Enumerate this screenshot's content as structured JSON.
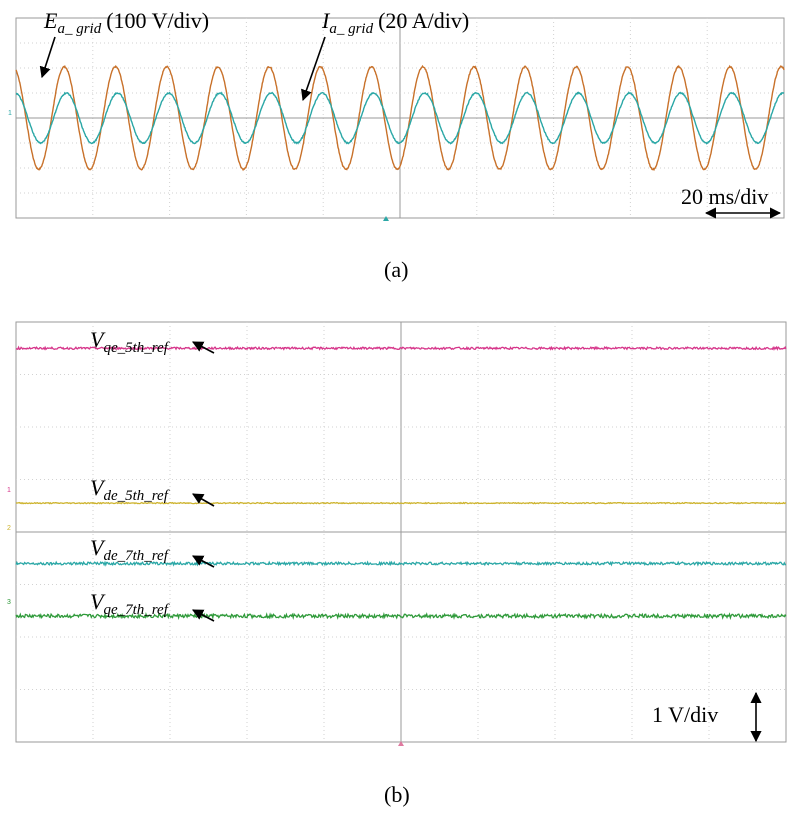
{
  "chart_data": [
    {
      "panel": "a",
      "type": "line",
      "caption": "(a)",
      "grid": true,
      "grid_divisions": {
        "x": 10,
        "y": 8
      },
      "scale": {
        "time": "20 ms/div"
      },
      "annotations": [
        {
          "symbol": "E",
          "subscript": "a_ grid",
          "text": "(100 V/div)"
        },
        {
          "symbol": "I",
          "subscript": "a_ grid",
          "text": "(20 A/div)"
        }
      ],
      "series": [
        {
          "symbol": "E",
          "subscript": "a_ grid",
          "color": "#c8712a",
          "waveform": "sine",
          "cycles": 15,
          "amplitude_div": 2.05,
          "offset_div": 0
        },
        {
          "symbol": "I",
          "subscript": "a_ grid",
          "color": "#2aa7a6",
          "waveform": "sine",
          "cycles": 15,
          "amplitude_div": 1.0,
          "offset_div": 0,
          "phase_deg": 14
        }
      ]
    },
    {
      "panel": "b",
      "type": "line",
      "caption": "(b)",
      "grid": true,
      "grid_divisions": {
        "x": 10,
        "y": 8
      },
      "scale": {
        "voltage": "1 V/div"
      },
      "series": [
        {
          "symbol": "V",
          "subscript": "qe_5th_ref",
          "color": "#d6358a",
          "level_div": 3.5
        },
        {
          "symbol": "V",
          "subscript": "de_5th_ref",
          "color": "#cdb32d",
          "level_div": 0.55
        },
        {
          "symbol": "V",
          "subscript": "de_7th_ref",
          "color": "#2aa7a6",
          "level_div": -0.6
        },
        {
          "symbol": "V",
          "subscript": "qe_7th_ref",
          "color": "#2f9a3a",
          "level_div": -1.6
        }
      ]
    }
  ]
}
